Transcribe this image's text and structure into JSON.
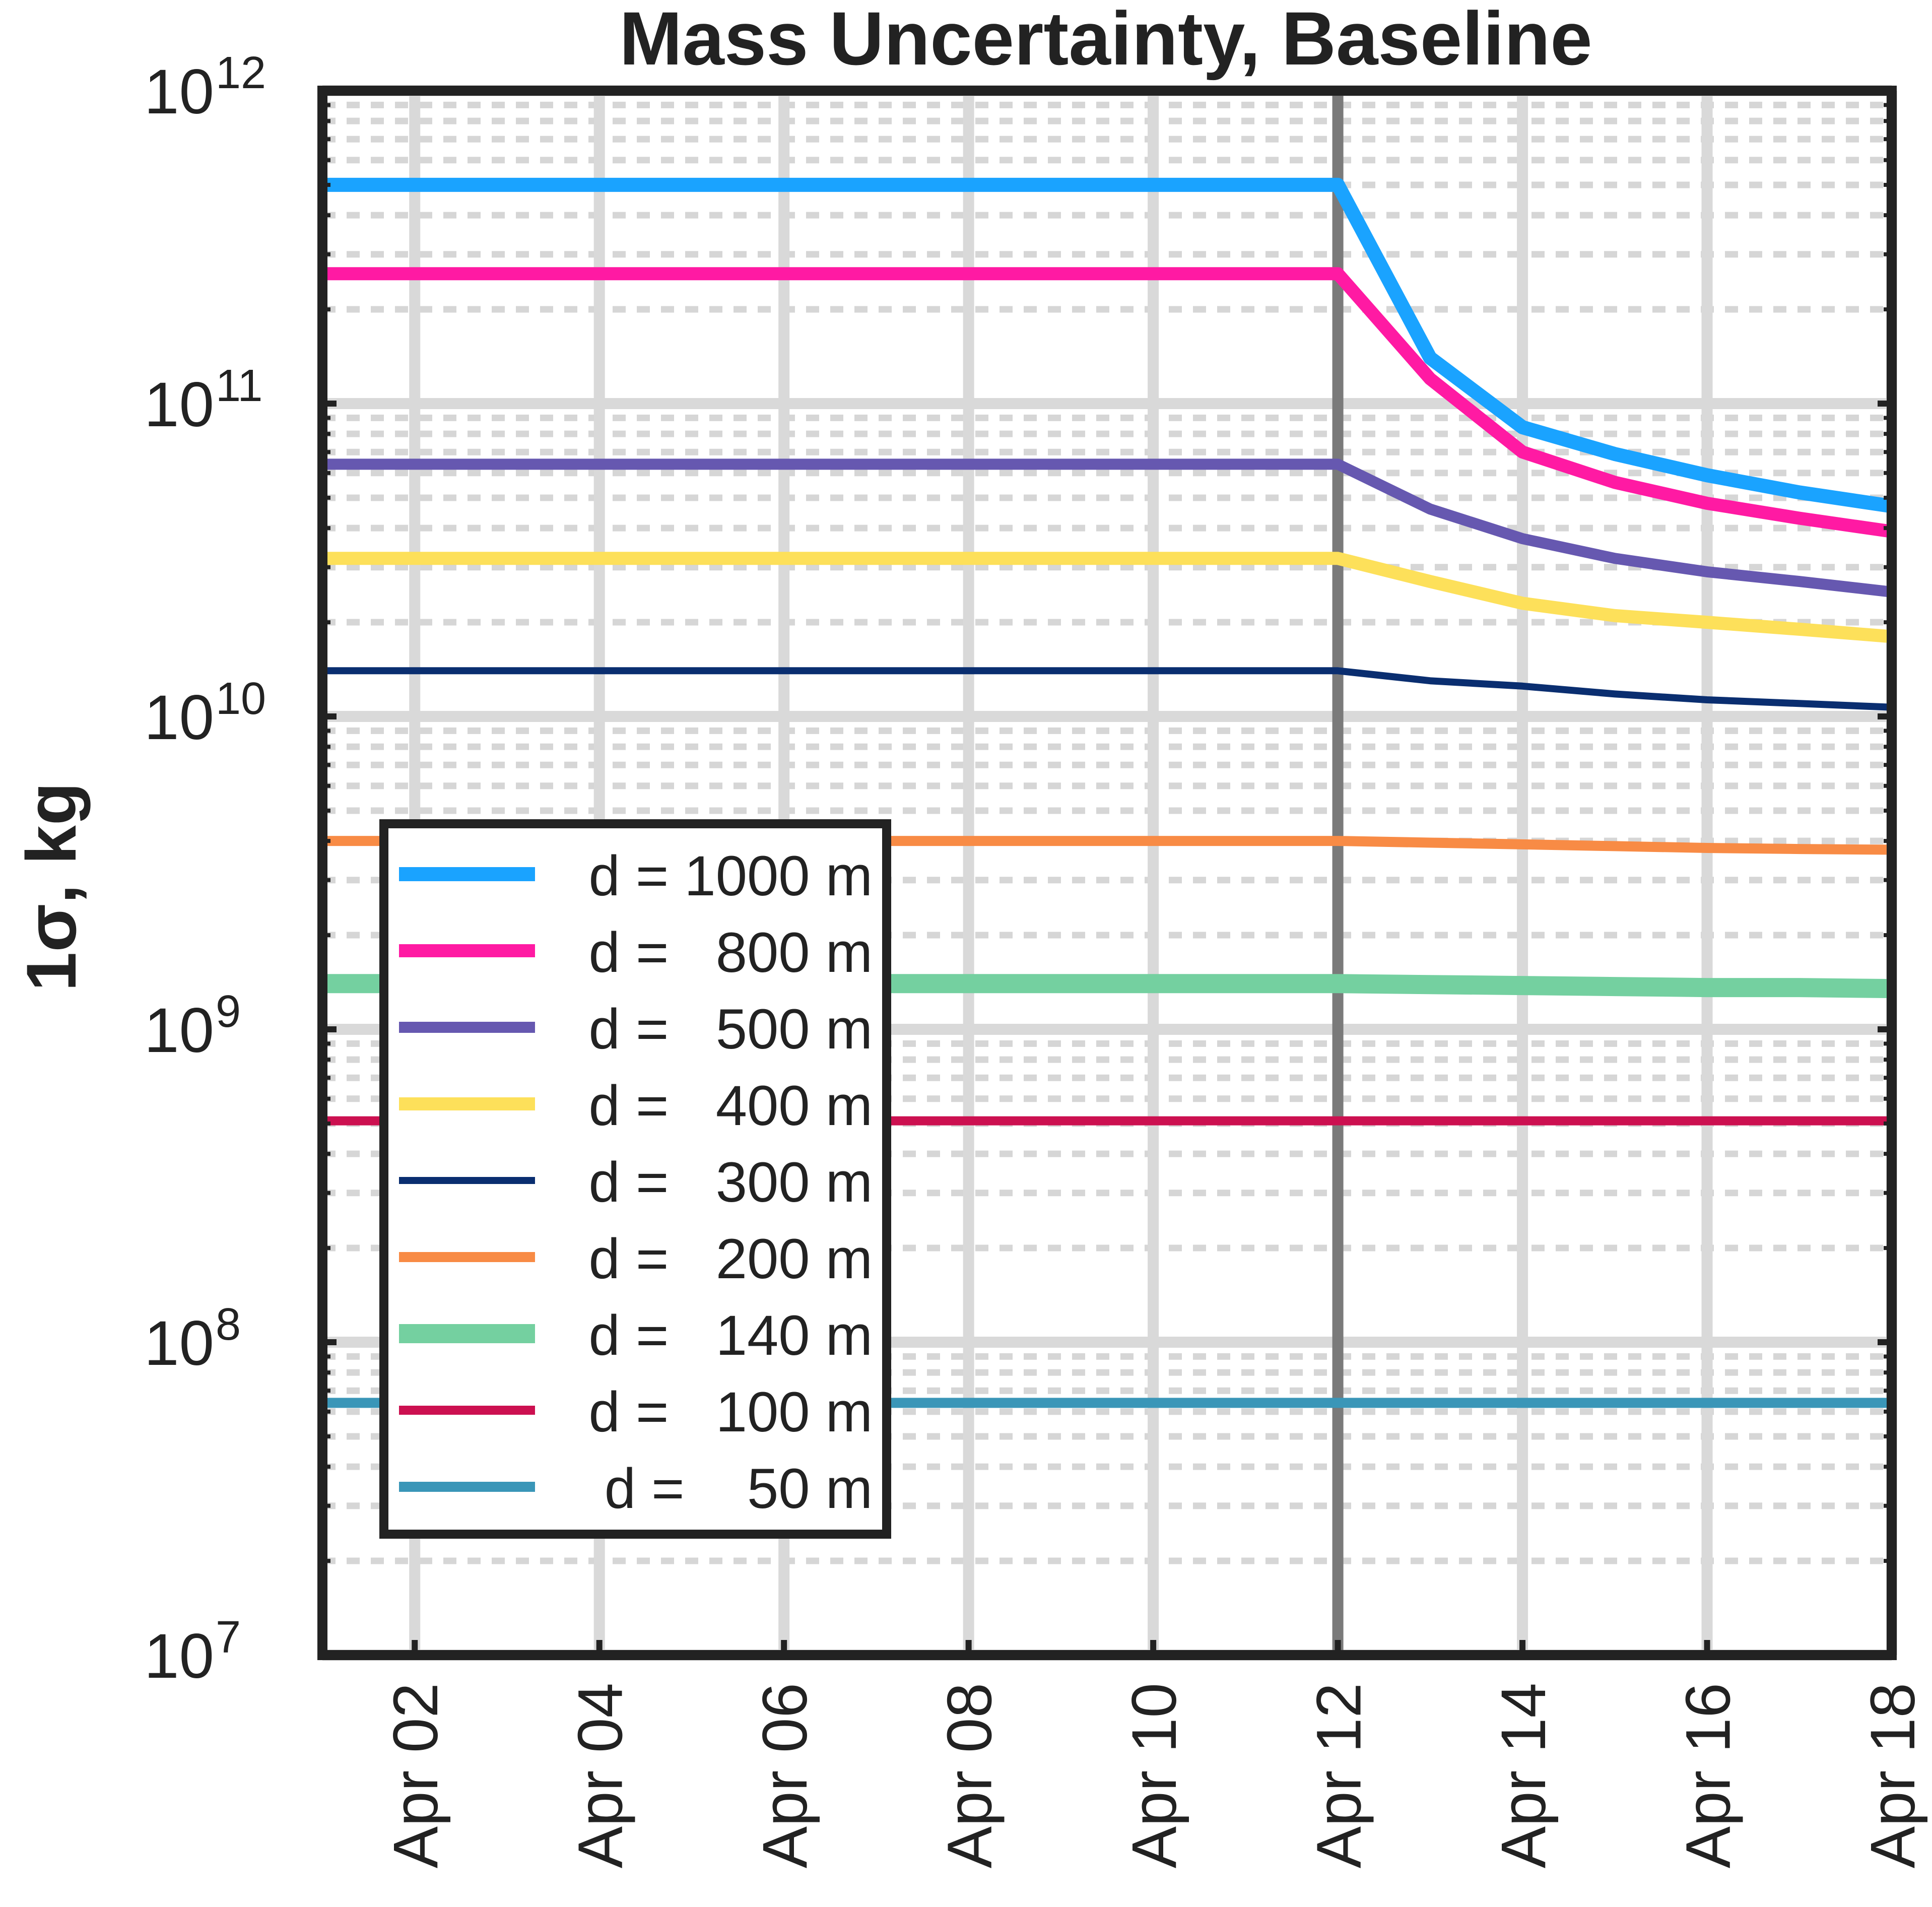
{
  "chart_data": {
    "type": "line",
    "title": "Mass Uncertainty, Baseline",
    "xlabel": "",
    "ylabel": "1σ,  kg",
    "y_scale": "log",
    "ylim": [
      10000000,
      1000000000000
    ],
    "xlim": [
      "2032-04-01",
      "2032-04-18"
    ],
    "x_ticks": [
      "Apr 02",
      "Apr 04",
      "Apr 06",
      "Apr 08",
      "Apr 10",
      "Apr 12",
      "Apr 14",
      "Apr 16",
      "Apr 18"
    ],
    "y_ticks": [
      {
        "base": "10",
        "exp": "7"
      },
      {
        "base": "10",
        "exp": "8"
      },
      {
        "base": "10",
        "exp": "9"
      },
      {
        "base": "10",
        "exp": "10"
      },
      {
        "base": "10",
        "exp": "11"
      },
      {
        "base": "10",
        "exp": "12"
      }
    ],
    "grid": "on",
    "event_marker_x": "Apr 12",
    "legend_position": "lower-left",
    "x": [
      "Apr 01",
      "Apr 12",
      "Apr 13",
      "Apr 14",
      "Apr 15",
      "Apr 16",
      "Apr 17",
      "Apr 18"
    ],
    "series": [
      {
        "name": "d = 1000 m",
        "color": "#1aa3ff",
        "values": [
          500000000000.0,
          500000000000.0,
          140000000000.0,
          84000000000.0,
          69000000000.0,
          59000000000.0,
          52000000000.0,
          47000000000.0
        ]
      },
      {
        "name": "d =   800 m",
        "color": "#ff1aa3",
        "values": [
          260000000000.0,
          260000000000.0,
          120000000000.0,
          70000000000.0,
          56000000000.0,
          48000000000.0,
          43000000000.0,
          39000000000.0
        ]
      },
      {
        "name": "d =   500 m",
        "color": "#6658b0",
        "values": [
          64000000000.0,
          64000000000.0,
          46000000000.0,
          37000000000.0,
          32000000000.0,
          29000000000.0,
          27000000000.0,
          25000000000.0
        ]
      },
      {
        "name": "d =   400 m",
        "color": "#fde05a",
        "values": [
          32000000000.0,
          32000000000.0,
          27000000000.0,
          23000000000.0,
          21000000000.0,
          20000000000.0,
          19000000000.0,
          18000000000.0
        ]
      },
      {
        "name": "d =   300 m",
        "color": "#0a2e70",
        "values": [
          14000000000.0,
          14000000000.0,
          13000000000.0,
          12500000000.0,
          11800000000.0,
          11300000000.0,
          11000000000.0,
          10700000000.0
        ]
      },
      {
        "name": "d =   200 m",
        "color": "#f88b45",
        "values": [
          4000000000.0,
          4000000000.0,
          3950000000.0,
          3900000000.0,
          3850000000.0,
          3800000000.0,
          3770000000.0,
          3750000000.0
        ]
      },
      {
        "name": "d =   140 m",
        "color": "#74d0a0",
        "values": [
          1400000000.0,
          1400000000.0,
          1390000000.0,
          1380000000.0,
          1370000000.0,
          1360000000.0,
          1360000000.0,
          1350000000.0
        ]
      },
      {
        "name": "d =   100 m",
        "color": "#cc1050",
        "values": [
          510000000.0,
          510000000.0,
          510000000.0,
          510000000.0,
          510000000.0,
          510000000.0,
          510000000.0,
          510000000.0
        ]
      },
      {
        "name": "d =    50 m",
        "color": "#3a96b8",
        "values": [
          64000000.0,
          64000000.0,
          64000000.0,
          64000000.0,
          64000000.0,
          64000000.0,
          64000000.0,
          64000000.0
        ]
      }
    ]
  }
}
